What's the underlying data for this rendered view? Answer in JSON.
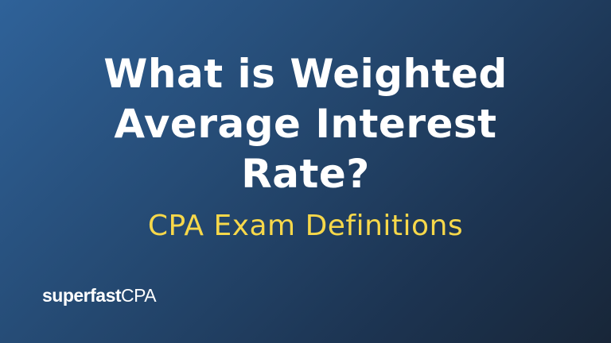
{
  "title_lines": [
    "What is Weighted",
    "Average Interest",
    "Rate?"
  ],
  "subtitle": "CPA Exam Definitions",
  "logo": {
    "bold": "superfast",
    "regular": "CPA"
  },
  "colors": {
    "background_start": "#2f6299",
    "background_end": "#182638",
    "title": "#ffffff",
    "subtitle": "#f7d84a"
  }
}
